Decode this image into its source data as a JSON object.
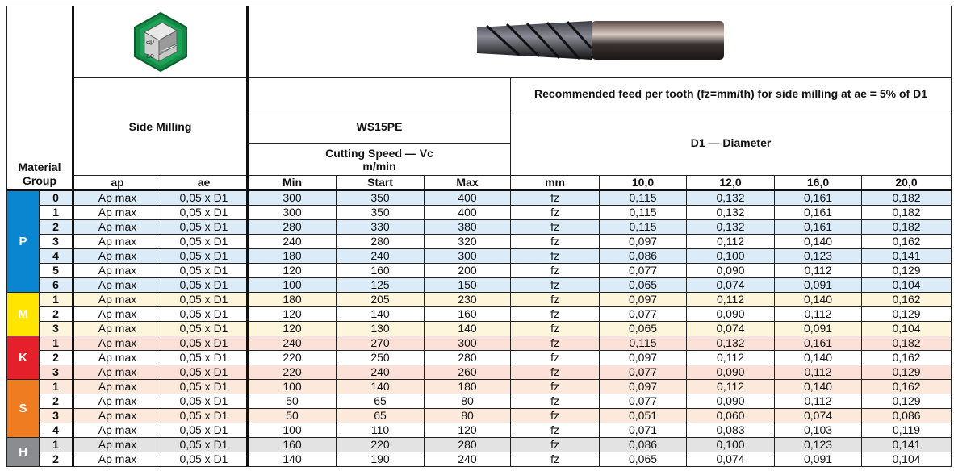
{
  "header": {
    "material_group": "Material Group",
    "operation": "Side Milling",
    "grade": "WS15PE",
    "cutting_speed": "Cutting Speed — Vc",
    "cutting_speed_unit": "m/min",
    "feed_title": "Recommended feed per tooth (fz=mm/th) for side milling at ae = 5% of D1",
    "diameter_title": "D1 — Diameter",
    "icon_labels": {
      "ap": "ap",
      "ae": "ae"
    }
  },
  "columns": [
    "ap",
    "ae",
    "Min",
    "Start",
    "Max",
    "mm",
    "10,0",
    "12,0",
    "16,0",
    "20,0"
  ],
  "groups": [
    {
      "letter": "P",
      "color": "#0a86d0",
      "row_tint": "#dcebf8",
      "rows": [
        [
          "0",
          "Ap max",
          "0,05 x D1",
          "300",
          "350",
          "400",
          "fz",
          "0,115",
          "0,132",
          "0,161",
          "0,182"
        ],
        [
          "1",
          "Ap max",
          "0,05 x D1",
          "300",
          "350",
          "400",
          "fz",
          "0,115",
          "0,132",
          "0,161",
          "0,182"
        ],
        [
          "2",
          "Ap max",
          "0,05 x D1",
          "280",
          "330",
          "380",
          "fz",
          "0,115",
          "0,132",
          "0,161",
          "0,182"
        ],
        [
          "3",
          "Ap max",
          "0,05 x D1",
          "240",
          "280",
          "320",
          "fz",
          "0,097",
          "0,112",
          "0,140",
          "0,162"
        ],
        [
          "4",
          "Ap max",
          "0,05 x D1",
          "180",
          "240",
          "300",
          "fz",
          "0,086",
          "0,100",
          "0,123",
          "0,141"
        ],
        [
          "5",
          "Ap max",
          "0,05 x D1",
          "120",
          "160",
          "200",
          "fz",
          "0,077",
          "0,090",
          "0,112",
          "0,129"
        ],
        [
          "6",
          "Ap max",
          "0,05 x D1",
          "100",
          "125",
          "150",
          "fz",
          "0,065",
          "0,074",
          "0,091",
          "0,104"
        ]
      ]
    },
    {
      "letter": "M",
      "color": "#ffe500",
      "row_tint": "#fdf5dc",
      "rows": [
        [
          "1",
          "Ap max",
          "0,05 x D1",
          "180",
          "205",
          "230",
          "fz",
          "0,097",
          "0,112",
          "0,140",
          "0,162"
        ],
        [
          "2",
          "Ap max",
          "0,05 x D1",
          "120",
          "140",
          "160",
          "fz",
          "0,077",
          "0,090",
          "0,112",
          "0,129"
        ],
        [
          "3",
          "Ap max",
          "0,05 x D1",
          "120",
          "130",
          "140",
          "fz",
          "0,065",
          "0,074",
          "0,091",
          "0,104"
        ]
      ]
    },
    {
      "letter": "K",
      "color": "#e4202a",
      "row_tint": "#fbe1d8",
      "rows": [
        [
          "1",
          "Ap max",
          "0,05 x D1",
          "240",
          "270",
          "300",
          "fz",
          "0,115",
          "0,132",
          "0,161",
          "0,182"
        ],
        [
          "2",
          "Ap max",
          "0,05 x D1",
          "220",
          "250",
          "280",
          "fz",
          "0,097",
          "0,112",
          "0,140",
          "0,162"
        ],
        [
          "3",
          "Ap max",
          "0,05 x D1",
          "220",
          "240",
          "260",
          "fz",
          "0,077",
          "0,090",
          "0,112",
          "0,129"
        ]
      ]
    },
    {
      "letter": "S",
      "color": "#f07c22",
      "row_tint": "#fde9dc",
      "rows": [
        [
          "1",
          "Ap max",
          "0,05 x D1",
          "100",
          "140",
          "180",
          "fz",
          "0,097",
          "0,112",
          "0,140",
          "0,162"
        ],
        [
          "2",
          "Ap max",
          "0,05 x D1",
          "50",
          "65",
          "80",
          "fz",
          "0,077",
          "0,090",
          "0,112",
          "0,129"
        ],
        [
          "3",
          "Ap max",
          "0,05 x D1",
          "50",
          "65",
          "80",
          "fz",
          "0,051",
          "0,060",
          "0,074",
          "0,086"
        ],
        [
          "4",
          "Ap max",
          "0,05 x D1",
          "100",
          "110",
          "120",
          "fz",
          "0,071",
          "0,083",
          "0,103",
          "0,119"
        ]
      ]
    },
    {
      "letter": "H",
      "color": "#8a8c8f",
      "row_tint": "#e3e3e3",
      "rows": [
        [
          "1",
          "Ap max",
          "0,05 x D1",
          "160",
          "220",
          "280",
          "fz",
          "0,086",
          "0,100",
          "0,123",
          "0,141"
        ],
        [
          "2",
          "Ap max",
          "0,05 x D1",
          "140",
          "190",
          "240",
          "fz",
          "0,065",
          "0,074",
          "0,091",
          "0,104"
        ]
      ]
    }
  ]
}
